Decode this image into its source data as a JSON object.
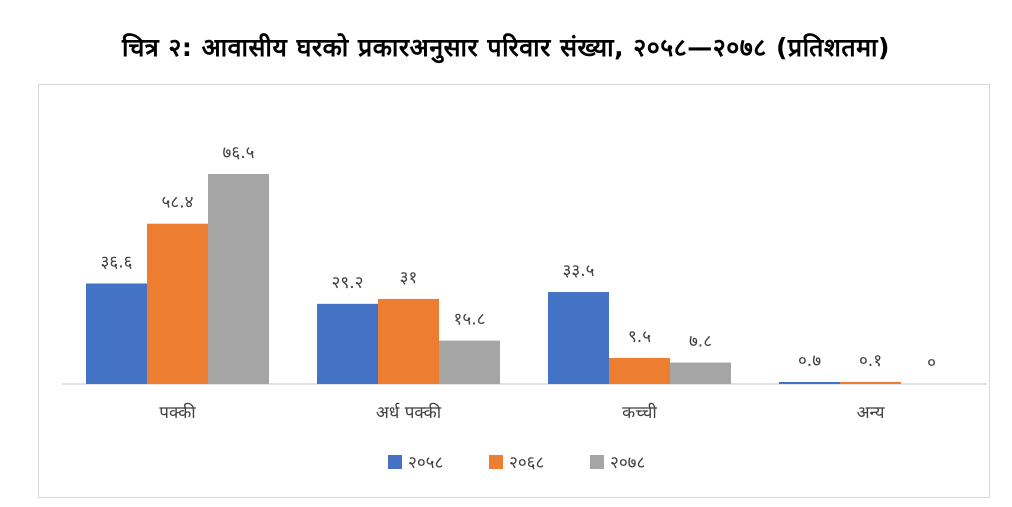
{
  "title": "चित्र २: आवासीय घरको प्रकारअनुसार परिवार संख्या, २०५८—२०७८ (प्रतिशतमा)",
  "chart_data": {
    "type": "bar",
    "title": "चित्र २: आवासीय घरको प्रकारअनुसार परिवार संख्या, २०५८—२०७८ (प्रतिशतमा)",
    "categories": [
      "पक्की",
      "अर्ध पक्की",
      "कच्ची",
      "अन्य"
    ],
    "series": [
      {
        "name": "२०५८",
        "color": "#4472c4",
        "values": [
          36.6,
          29.2,
          33.5,
          0.7
        ],
        "labels": [
          "३६.६",
          "२९.२",
          "३३.५",
          "०.७"
        ]
      },
      {
        "name": "२०६८",
        "color": "#ed7d31",
        "values": [
          58.4,
          31,
          9.5,
          0.1
        ],
        "labels": [
          "५८.४",
          "३१",
          "९.५",
          "०.१"
        ]
      },
      {
        "name": "२०७८",
        "color": "#a5a5a5",
        "values": [
          76.5,
          15.8,
          7.8,
          0
        ],
        "labels": [
          "७६.५",
          "१५.८",
          "७.८",
          "०"
        ]
      }
    ],
    "ylim": [
      0,
      76.5
    ],
    "grid": false,
    "legend": "bottom"
  }
}
